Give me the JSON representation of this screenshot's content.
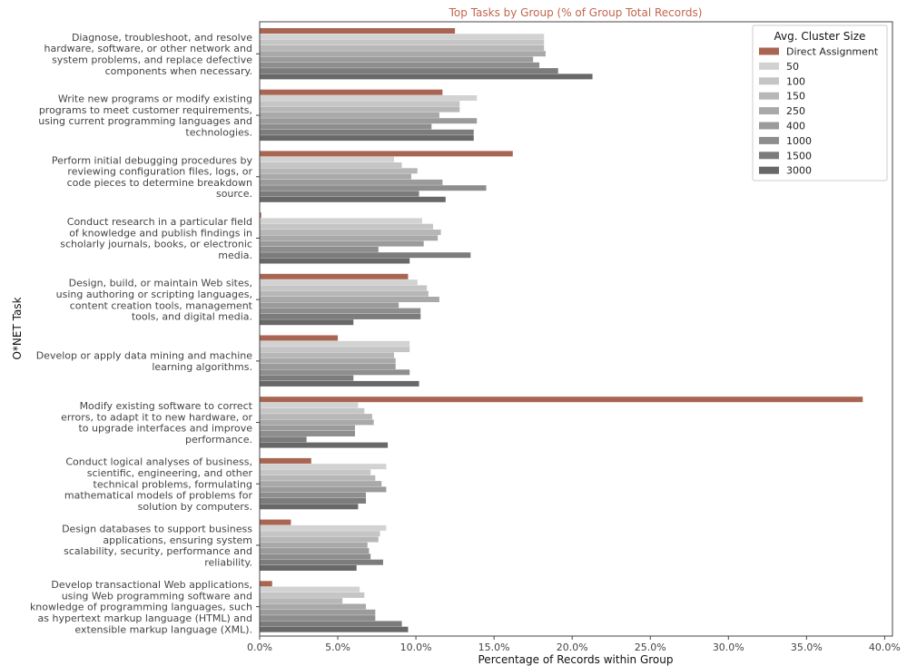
{
  "chart_data": {
    "type": "bar",
    "orientation": "horizontal",
    "title": "Top Tasks by Group (% of Group Total Records)",
    "xlabel": "Percentage of Records within Group",
    "ylabel": "O*NET Task",
    "xlim": [
      0,
      40.5
    ],
    "xticks": [
      "0.0%",
      "5.0%",
      "10.0%",
      "15.0%",
      "20.0%",
      "25.0%",
      "30.0%",
      "35.0%",
      "40.0%"
    ],
    "xtick_values": [
      0,
      5,
      10,
      15,
      20,
      25,
      30,
      35,
      40
    ],
    "grid": false,
    "legend_title": "Avg. Cluster Size",
    "legend_position": "top-right",
    "categories": [
      [
        "Diagnose, troubleshoot, and resolve",
        "hardware, software, or other network and",
        "system problems, and replace defective",
        "components when necessary."
      ],
      [
        "Write new programs or modify existing",
        "programs to meet customer requirements,",
        "using current programming languages and",
        "technologies."
      ],
      [
        "Perform initial debugging procedures by",
        "reviewing configuration files, logs, or",
        "code pieces to determine breakdown",
        "source."
      ],
      [
        "Conduct research in a particular field",
        "of knowledge and publish findings in",
        "scholarly journals, books, or electronic",
        "media."
      ],
      [
        "Design, build, or maintain Web sites,",
        "using authoring or scripting languages,",
        "content creation tools, management",
        "tools, and digital media."
      ],
      [
        "Develop or apply data mining and machine",
        "learning algorithms."
      ],
      [
        "Modify existing software to correct",
        "errors, to adapt it to new hardware, or",
        "to upgrade interfaces and improve",
        "performance."
      ],
      [
        "Conduct logical analyses of business,",
        "scientific, engineering, and other",
        "technical problems, formulating",
        "mathematical models of problems for",
        "solution by computers."
      ],
      [
        "Design databases to support business",
        "applications, ensuring system",
        "scalability, security, performance and",
        "reliability."
      ],
      [
        "Develop transactional Web applications,",
        "using Web programming software and",
        "knowledge of programming languages, such",
        "as hypertext markup language (HTML) and",
        "extensible markup language (XML)."
      ]
    ],
    "series": [
      {
        "name": "Direct Assignment",
        "color": "#a86552",
        "values": [
          12.5,
          11.7,
          16.2,
          0.1,
          9.5,
          5.0,
          38.6,
          3.3,
          2.0,
          0.8
        ]
      },
      {
        "name": "50",
        "color": "#d2d2d2",
        "values": [
          18.2,
          13.9,
          8.6,
          10.4,
          10.1,
          9.6,
          6.3,
          8.1,
          8.1,
          6.4
        ]
      },
      {
        "name": "100",
        "color": "#c5c5c5",
        "values": [
          18.2,
          12.8,
          9.1,
          11.1,
          10.7,
          9.6,
          6.7,
          7.1,
          7.7,
          6.7
        ]
      },
      {
        "name": "150",
        "color": "#b7b7b7",
        "values": [
          18.2,
          12.8,
          10.1,
          11.6,
          10.8,
          8.6,
          7.2,
          7.4,
          7.6,
          5.3
        ]
      },
      {
        "name": "250",
        "color": "#a9a9a9",
        "values": [
          18.3,
          11.5,
          9.7,
          11.4,
          11.5,
          8.7,
          7.3,
          7.8,
          6.9,
          6.8
        ]
      },
      {
        "name": "400",
        "color": "#9b9b9b",
        "values": [
          17.5,
          13.9,
          11.7,
          10.5,
          8.9,
          8.7,
          6.1,
          8.1,
          7.0,
          7.4
        ]
      },
      {
        "name": "1000",
        "color": "#8e8e8e",
        "values": [
          17.9,
          11.0,
          14.5,
          7.6,
          10.3,
          9.6,
          6.1,
          6.8,
          7.1,
          7.4
        ]
      },
      {
        "name": "1500",
        "color": "#7c7c7c",
        "values": [
          19.1,
          13.7,
          10.2,
          13.5,
          10.3,
          6.0,
          3.0,
          6.8,
          7.9,
          9.1
        ]
      },
      {
        "name": "3000",
        "color": "#686868",
        "values": [
          21.3,
          13.7,
          11.9,
          9.6,
          6.0,
          10.2,
          8.2,
          6.3,
          6.2,
          9.5
        ]
      }
    ]
  }
}
